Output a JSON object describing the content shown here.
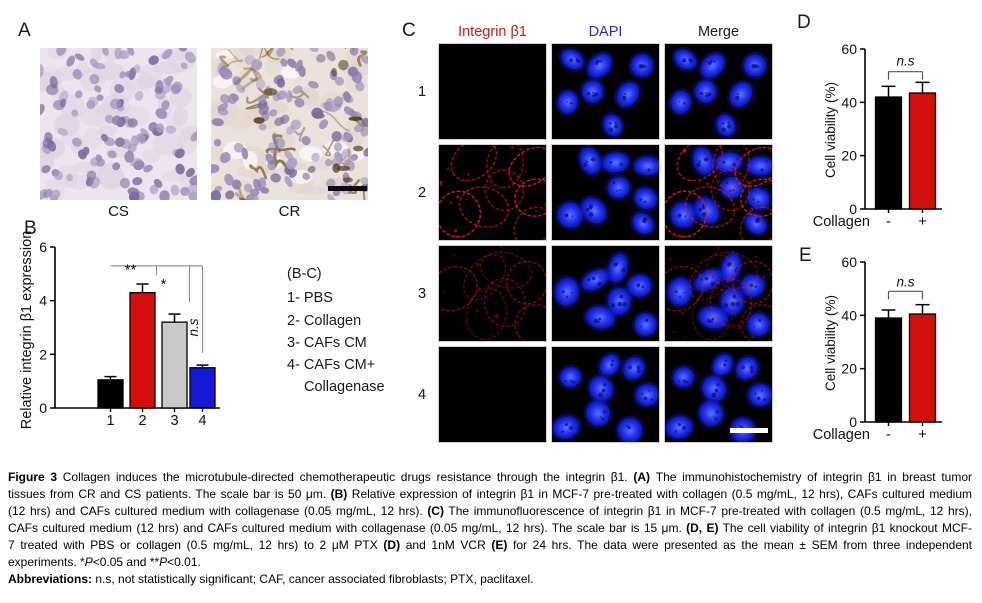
{
  "panel_a": {
    "label": "A",
    "images": [
      {
        "name": "CS"
      },
      {
        "name": "CR"
      }
    ]
  },
  "panel_b": {
    "label": "B"
  },
  "legend": {
    "title": "(B-C)",
    "items": [
      "1- PBS",
      "2- Collagen",
      "3- CAFs CM",
      "4- CAFs CM+",
      "Collagenase"
    ]
  },
  "panel_c": {
    "label": "C",
    "columns": [
      {
        "label": "Integrin β1",
        "color": "#e3120c"
      },
      {
        "label": "DAPI",
        "color": "#2a2acc"
      },
      {
        "label": "Merge",
        "color": "#1a1a1a"
      }
    ],
    "rows": [
      {
        "label": "1",
        "integrin": "none"
      },
      {
        "label": "2",
        "integrin": "strong"
      },
      {
        "label": "3",
        "integrin": "faint"
      },
      {
        "label": "4",
        "integrin": "none"
      }
    ]
  },
  "panel_d": {
    "label": "D"
  },
  "panel_e": {
    "label": "E"
  },
  "colors": {
    "bar_black": "#000000",
    "bar_red": "#d40d0d",
    "bar_gray": "#c9c9c9",
    "bar_blue": "#1717d6",
    "ihc_scale_bar": "#0d0d0d",
    "if_scale_bar": "#ffffff"
  },
  "chart_data": [
    {
      "id": "B",
      "type": "bar",
      "categories": [
        "1",
        "2",
        "3",
        "4"
      ],
      "values": [
        1.05,
        4.3,
        3.2,
        1.5
      ],
      "errors": [
        0.12,
        0.32,
        0.3,
        0.1
      ],
      "bar_colors": [
        "#000000",
        "#d40d0d",
        "#c9c9c9",
        "#1717d6"
      ],
      "ylabel": "Relative integrin β1 expression",
      "xlabel": "",
      "ylim": [
        0,
        6
      ],
      "yticks": [
        0,
        2,
        4,
        6
      ],
      "grid": false,
      "significance": {
        "baseline": {
          "v": 5.3,
          "from_cat": 0,
          "to_cat": 3
        },
        "marks": [
          {
            "label": "**",
            "at_cat": 1,
            "drop_to_v": 4.95,
            "label_v": 5.15,
            "rotate": 0
          },
          {
            "label": "*",
            "at_cat": 2,
            "drop_to_v": 3.95,
            "label_v": 4.6,
            "rotate": 0
          },
          {
            "label": "n.s",
            "at_cat": 3,
            "drop_to_v": 2.05,
            "label_v": 3.0,
            "rotate": -90
          }
        ]
      }
    },
    {
      "id": "D",
      "type": "bar",
      "categories": [
        "-",
        "+"
      ],
      "x_prefix": "Collagen",
      "values": [
        42,
        43.5
      ],
      "errors": [
        4,
        4
      ],
      "bar_colors": [
        "#000000",
        "#d40d0d"
      ],
      "ylabel": "Cell viability (%)",
      "xlabel": "",
      "ylim": [
        0,
        60
      ],
      "yticks": [
        0,
        20,
        40,
        60
      ],
      "grid": false,
      "significance": {
        "bracket": {
          "from_cat": 0,
          "to_cat": 1,
          "v": 51.5,
          "label": "n.s",
          "label_v": 55.5
        }
      }
    },
    {
      "id": "E",
      "type": "bar",
      "categories": [
        "-",
        "+"
      ],
      "x_prefix": "Collagen",
      "values": [
        39,
        40.5
      ],
      "errors": [
        3,
        3.5
      ],
      "bar_colors": [
        "#000000",
        "#d40d0d"
      ],
      "ylabel": "Cell viability (%)",
      "xlabel": "",
      "ylim": [
        0,
        60
      ],
      "yticks": [
        0,
        20,
        40,
        60
      ],
      "grid": false,
      "significance": {
        "bracket": {
          "from_cat": 0,
          "to_cat": 1,
          "v": 49,
          "label": "n.s",
          "label_v": 52.5
        }
      }
    }
  ],
  "caption": {
    "lines": [
      [
        {
          "t": "Figure 3 ",
          "b": 1
        },
        {
          "t": "Collagen induces the microtubule-directed chemotherapeutic drugs resistance through the integrin β1. "
        },
        {
          "t": "(A)",
          "b": 1
        },
        {
          "t": " The immunohistochemistry of integrin β1 in breast tumor"
        }
      ],
      [
        {
          "t": "tissues from CR and CS patients. The scale bar is 50 μm. "
        },
        {
          "t": "(B)",
          "b": 1
        },
        {
          "t": " Relative expression of integrin β1 in MCF-7 pre-treated with collagen (0.5 mg/mL, 12 hrs), CAFs cultured medium"
        }
      ],
      [
        {
          "t": "(12 hrs) and CAFs cultured medium with collagenase (0.05 mg/mL, 12 hrs). "
        },
        {
          "t": "(C)",
          "b": 1
        },
        {
          "t": " The immunofluorescence of integrin β1 in MCF-7 pre-treated with collagen (0.5 mg/mL, 12 hrs),"
        }
      ],
      [
        {
          "t": "CAFs cultured medium (12 hrs) and CAFs cultured medium with collagenase (0.05 mg/mL, 12 hrs). The scale bar is 15 μm. "
        },
        {
          "t": "(D, E)",
          "b": 1
        },
        {
          "t": " The cell viability of integrin β1 knockout MCF-"
        }
      ],
      [
        {
          "t": "7 treated with PBS or collagen (0.5 mg/mL, 12 hrs) to 2 μM PTX "
        },
        {
          "t": "(D)",
          "b": 1
        },
        {
          "t": " and 1nM VCR "
        },
        {
          "t": "(E)",
          "b": 1
        },
        {
          "t": " for 24 hrs. The data were presented as the mean ± SEM from three independent"
        }
      ],
      [
        {
          "t": "experiments. *"
        },
        {
          "t": "P",
          "i": 1
        },
        {
          "t": "<0.05 and **"
        },
        {
          "t": "P",
          "i": 1
        },
        {
          "t": "<0.01."
        }
      ],
      [
        {
          "t": "Abbreviations: ",
          "b": 1
        },
        {
          "t": "n.s, not statistically significant; CAF, cancer associated fibroblasts; PTX, paclitaxel."
        }
      ]
    ]
  }
}
